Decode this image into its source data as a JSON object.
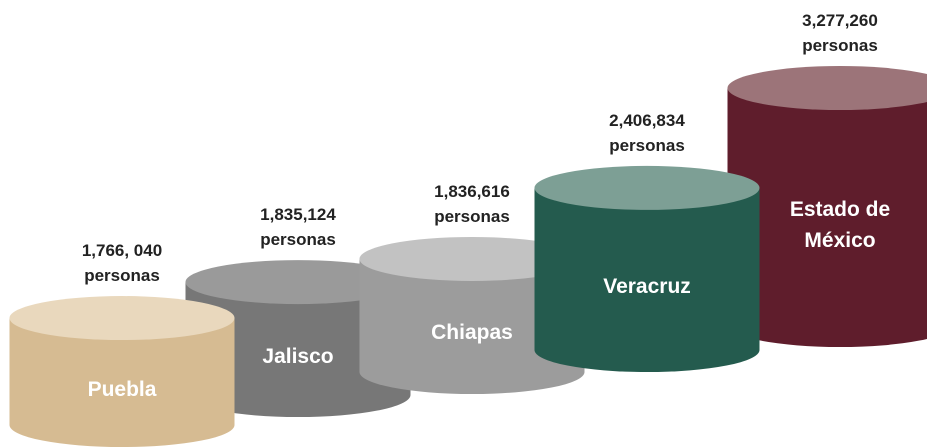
{
  "chart_data": {
    "type": "cylinder",
    "categories": [
      "Puebla",
      "Jalisco",
      "Chiapas",
      "Veracruz",
      "Estado de México"
    ],
    "values": [
      1766040,
      1835124,
      1836616,
      2406834,
      3277260
    ],
    "value_labels": [
      "1,766, 040\npersonas",
      "1,835,124\npersonas",
      "1,836,616\npersonas",
      "2,406,834\npersonas",
      "3,277,260\npersonas"
    ],
    "colors": [
      "#d6bb92",
      "#777777",
      "#9c9c9c",
      "#245b4e",
      "#5f1d2c"
    ],
    "top_colors": [
      "#e9d8bd",
      "#9a9a9a",
      "#c2c2c2",
      "#7d9f95",
      "#9c7479"
    ]
  }
}
